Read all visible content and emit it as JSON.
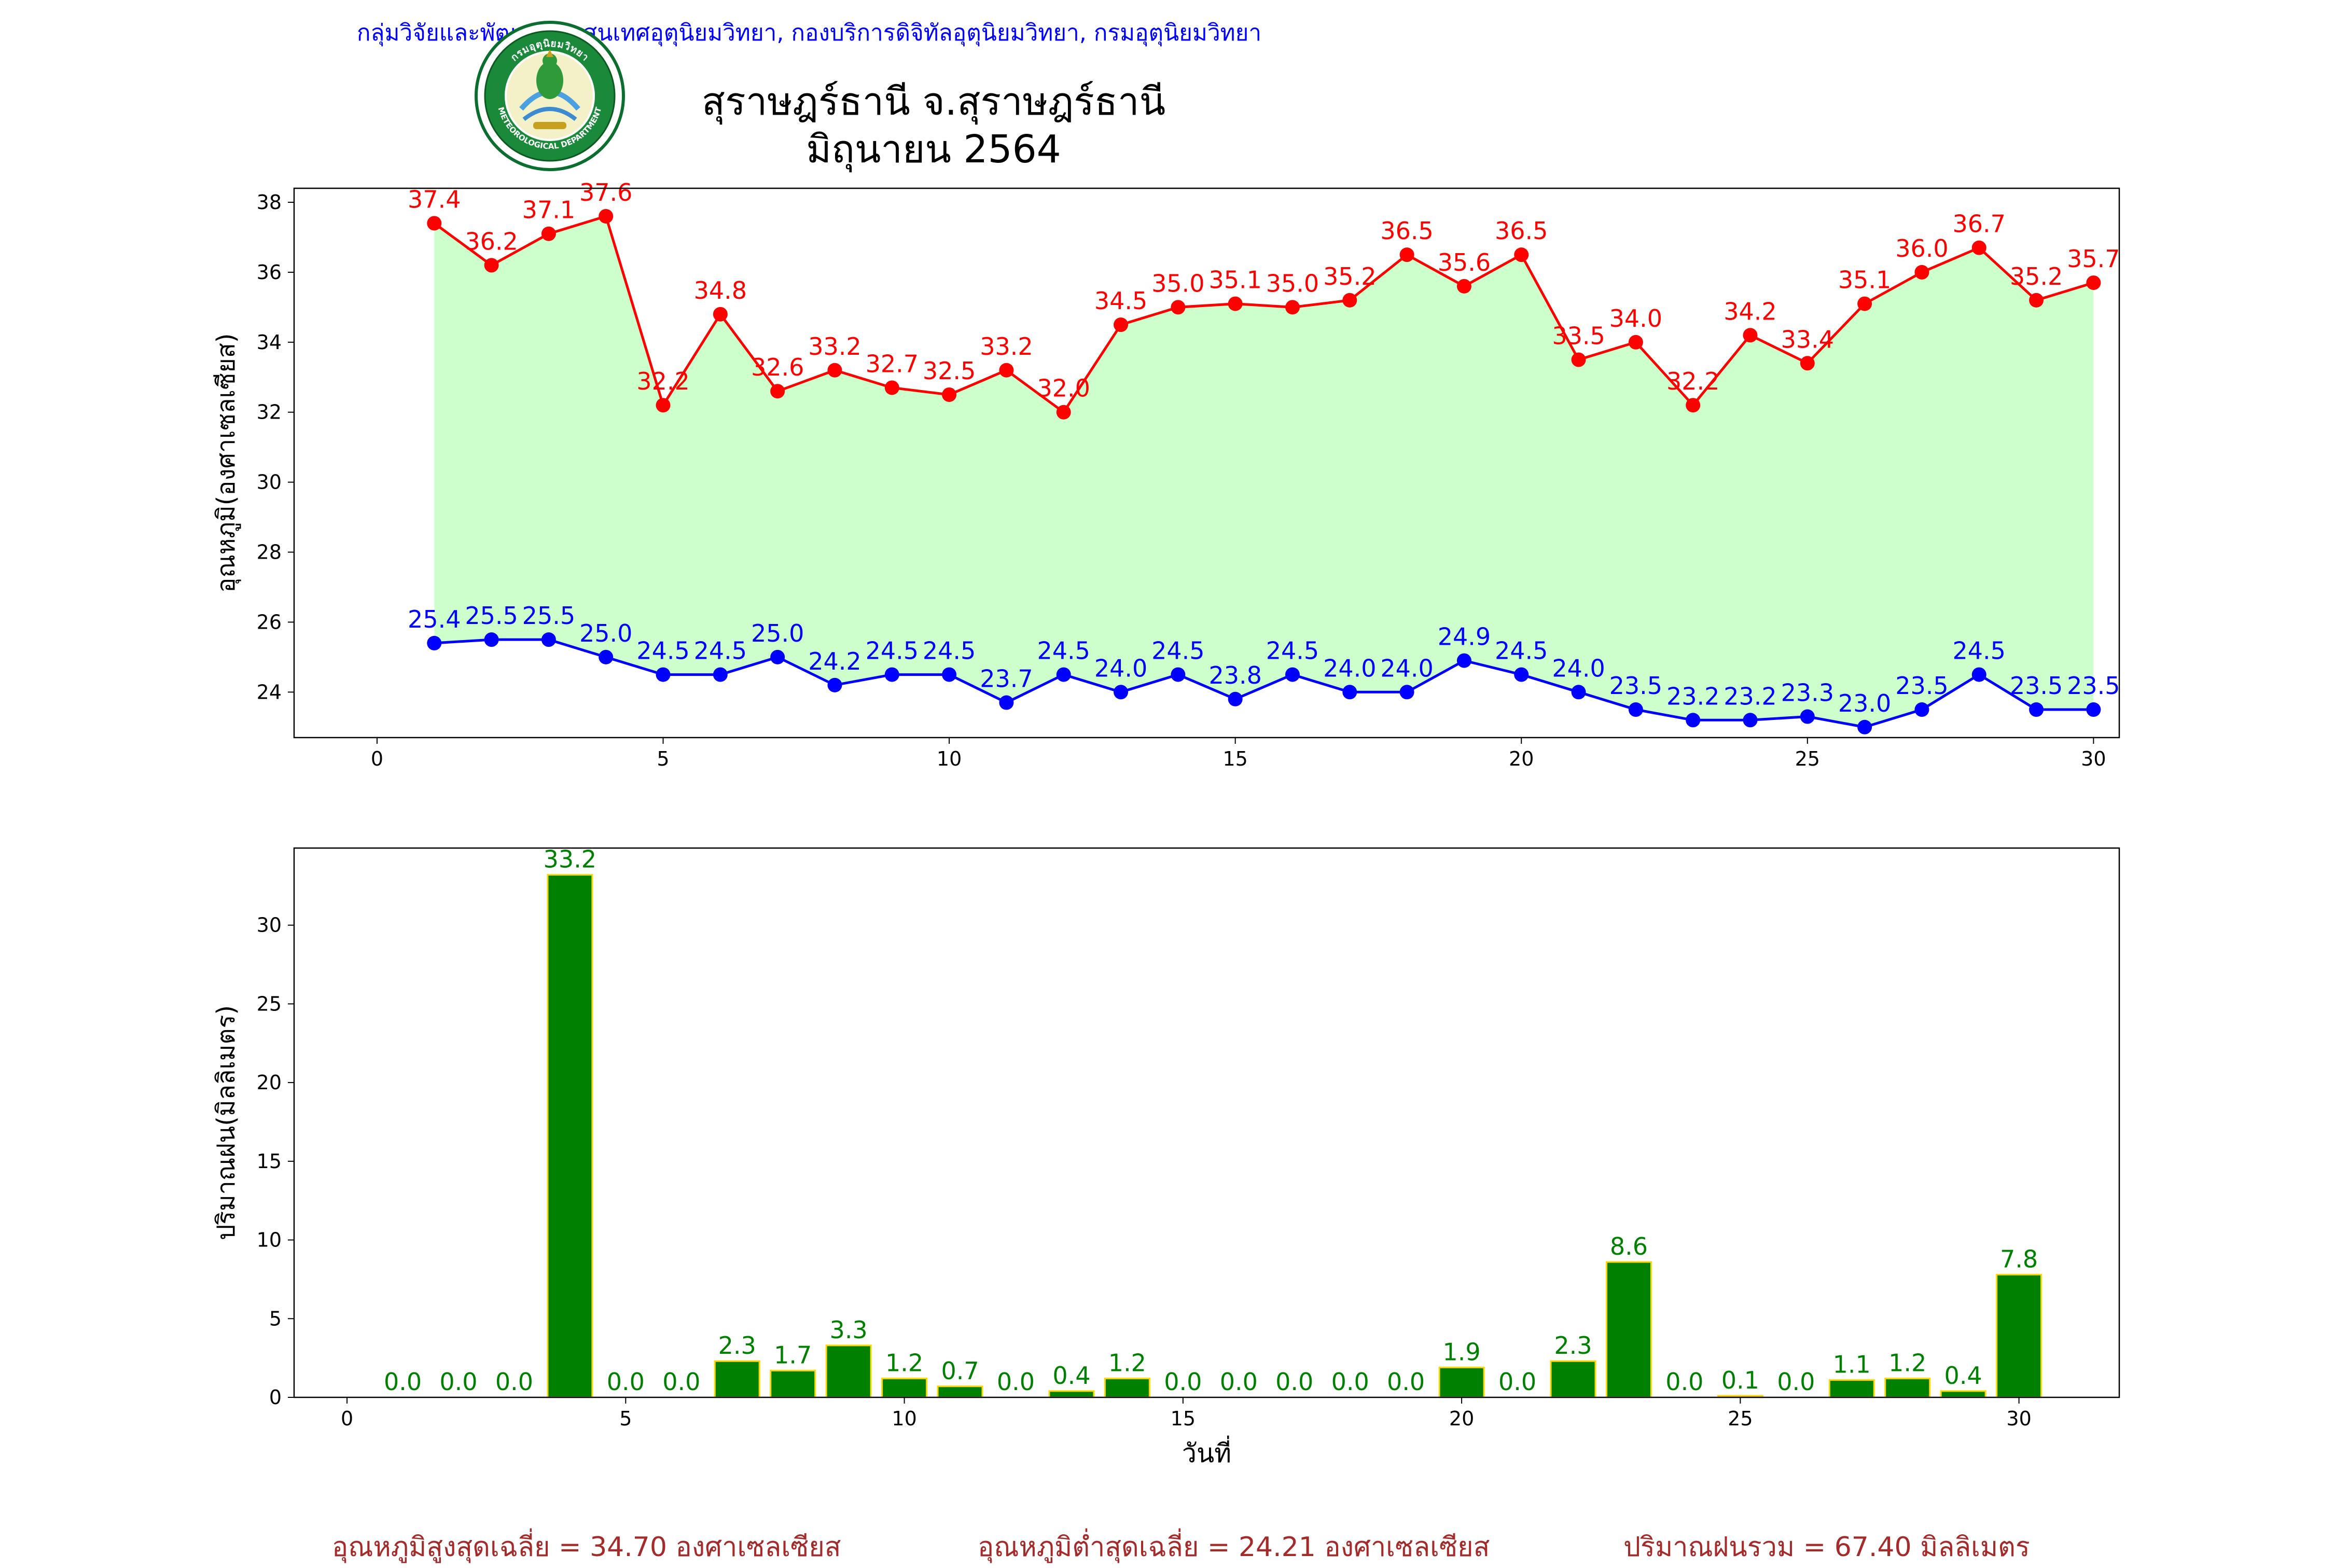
{
  "header": {
    "agency": "กลุ่มวิจัยและพัฒนาสารสนเทศอุตุนิยมวิทยา, กองบริการดิจิทัลอุตุนิยมวิทยา, กรมอุตุนิยมวิทยา",
    "title_line1": "สุราษฎร์ธานี จ.สุราษฎร์ธานี",
    "title_line2": "มิถุนายน 2564"
  },
  "logo": {
    "icon": "meteorological-department-seal-icon",
    "text_top": "กรมอุตุนิยมวิทยา",
    "text_bottom": "METEOROLOGICAL DEPARTMENT"
  },
  "colors": {
    "max_line": "#ff0000",
    "min_line": "#0000ff",
    "range_fill": "#ccffcc",
    "rain_bar": "#008000",
    "rain_edge": "#ffd700",
    "rain_label": "#008000",
    "summary": "#a52a2a",
    "agency": "#0000ff"
  },
  "chart_data": [
    {
      "type": "line",
      "ylabel": "อุณหภูมิ(องศาเซลเซียส)",
      "xlabel": "",
      "xlim": [
        -1.45,
        30.45
      ],
      "ylim": [
        22.7,
        38.4
      ],
      "xticks": [
        0,
        5,
        10,
        15,
        20,
        25,
        30
      ],
      "yticks": [
        24,
        26,
        28,
        30,
        32,
        34,
        36,
        38
      ],
      "fill_between": [
        "max_temp",
        "min_temp"
      ],
      "x": [
        1,
        2,
        3,
        4,
        5,
        6,
        7,
        8,
        9,
        10,
        11,
        12,
        13,
        14,
        15,
        16,
        17,
        18,
        19,
        20,
        21,
        22,
        23,
        24,
        25,
        26,
        27,
        28,
        29,
        30
      ],
      "series": [
        {
          "key": "max_temp",
          "values": [
            37.4,
            36.2,
            37.1,
            37.6,
            32.2,
            34.8,
            32.6,
            33.2,
            32.7,
            32.5,
            33.2,
            32.0,
            34.5,
            35.0,
            35.1,
            35.0,
            35.2,
            36.5,
            35.6,
            36.5,
            33.5,
            34.0,
            32.2,
            34.2,
            33.4,
            35.1,
            36.0,
            36.7,
            35.2,
            35.7
          ],
          "labels": [
            "37.4",
            "36.2",
            "37.1",
            "37.6",
            "32.2",
            "34.8",
            "32.6",
            "33.2",
            "32.7",
            "32.5",
            "33.2",
            "32.0",
            "34.5",
            "35.0",
            "35.1",
            "35.0",
            "35.2",
            "36.5",
            "35.6",
            "36.5",
            "33.5",
            "34.0",
            "32.2",
            "34.2",
            "33.4",
            "35.1",
            "36.0",
            "36.7",
            "35.2",
            "35.7"
          ]
        },
        {
          "key": "min_temp",
          "values": [
            25.4,
            25.5,
            25.5,
            25.0,
            24.5,
            24.5,
            25.0,
            24.2,
            24.5,
            24.5,
            23.7,
            24.5,
            24.0,
            24.5,
            23.8,
            24.5,
            24.0,
            24.0,
            24.9,
            24.5,
            24.0,
            23.5,
            23.2,
            23.2,
            23.3,
            23.0,
            23.5,
            24.5,
            23.5,
            23.5
          ],
          "labels": [
            "25.4",
            "25.5",
            "25.5",
            "25.0",
            "24.5",
            "24.5",
            "25.0",
            "24.2",
            "24.5",
            "24.5",
            "23.7",
            "24.5",
            "24.0",
            "24.5",
            "23.8",
            "24.5",
            "24.0",
            "24.0",
            "24.9",
            "24.5",
            "24.0",
            "23.5",
            "23.2",
            "23.2",
            "23.3",
            "23.0",
            "23.5",
            "24.5",
            "23.5",
            "23.5"
          ]
        }
      ]
    },
    {
      "type": "bar",
      "ylabel": "ปริมาณฝน(มิลลิเมตร)",
      "xlabel": "วันที่",
      "xlim": [
        -0.95,
        31.8
      ],
      "ylim": [
        0,
        34.9
      ],
      "xticks": [
        0,
        5,
        10,
        15,
        20,
        25,
        30
      ],
      "yticks": [
        0,
        5,
        10,
        15,
        20,
        25,
        30
      ],
      "x": [
        1,
        2,
        3,
        4,
        5,
        6,
        7,
        8,
        9,
        10,
        11,
        12,
        13,
        14,
        15,
        16,
        17,
        18,
        19,
        20,
        21,
        22,
        23,
        24,
        25,
        26,
        27,
        28,
        29,
        30
      ],
      "values": [
        0.0,
        0.0,
        0.0,
        33.2,
        0.0,
        0.0,
        2.3,
        1.7,
        3.3,
        1.2,
        0.7,
        0.0,
        0.4,
        1.2,
        0.0,
        0.0,
        0.0,
        0.0,
        0.0,
        1.9,
        0.0,
        2.3,
        8.6,
        0.0,
        0.1,
        0.0,
        1.1,
        1.2,
        0.4,
        7.8
      ],
      "labels": [
        "0.0",
        "0.0",
        "0.0",
        "33.2",
        "0.0",
        "0.0",
        "2.3",
        "1.7",
        "3.3",
        "1.2",
        "0.7",
        "0.0",
        "0.4",
        "1.2",
        "0.0",
        "0.0",
        "0.0",
        "0.0",
        "0.0",
        "1.9",
        "0.0",
        "2.3",
        "8.6",
        "0.0",
        "0.1",
        "0.0",
        "1.1",
        "1.2",
        "0.4",
        "7.8"
      ]
    }
  ],
  "summary": {
    "avg_max": "อุณหภูมิสูงสุดเฉลี่ย = 34.70 องศาเซลเซียส",
    "avg_min": "อุณหภูมิต่ำสุดเฉลี่ย = 24.21 องศาเซลเซียส",
    "total_rain": "ปริมาณฝนรวม = 67.40 มิลลิเมตร"
  }
}
